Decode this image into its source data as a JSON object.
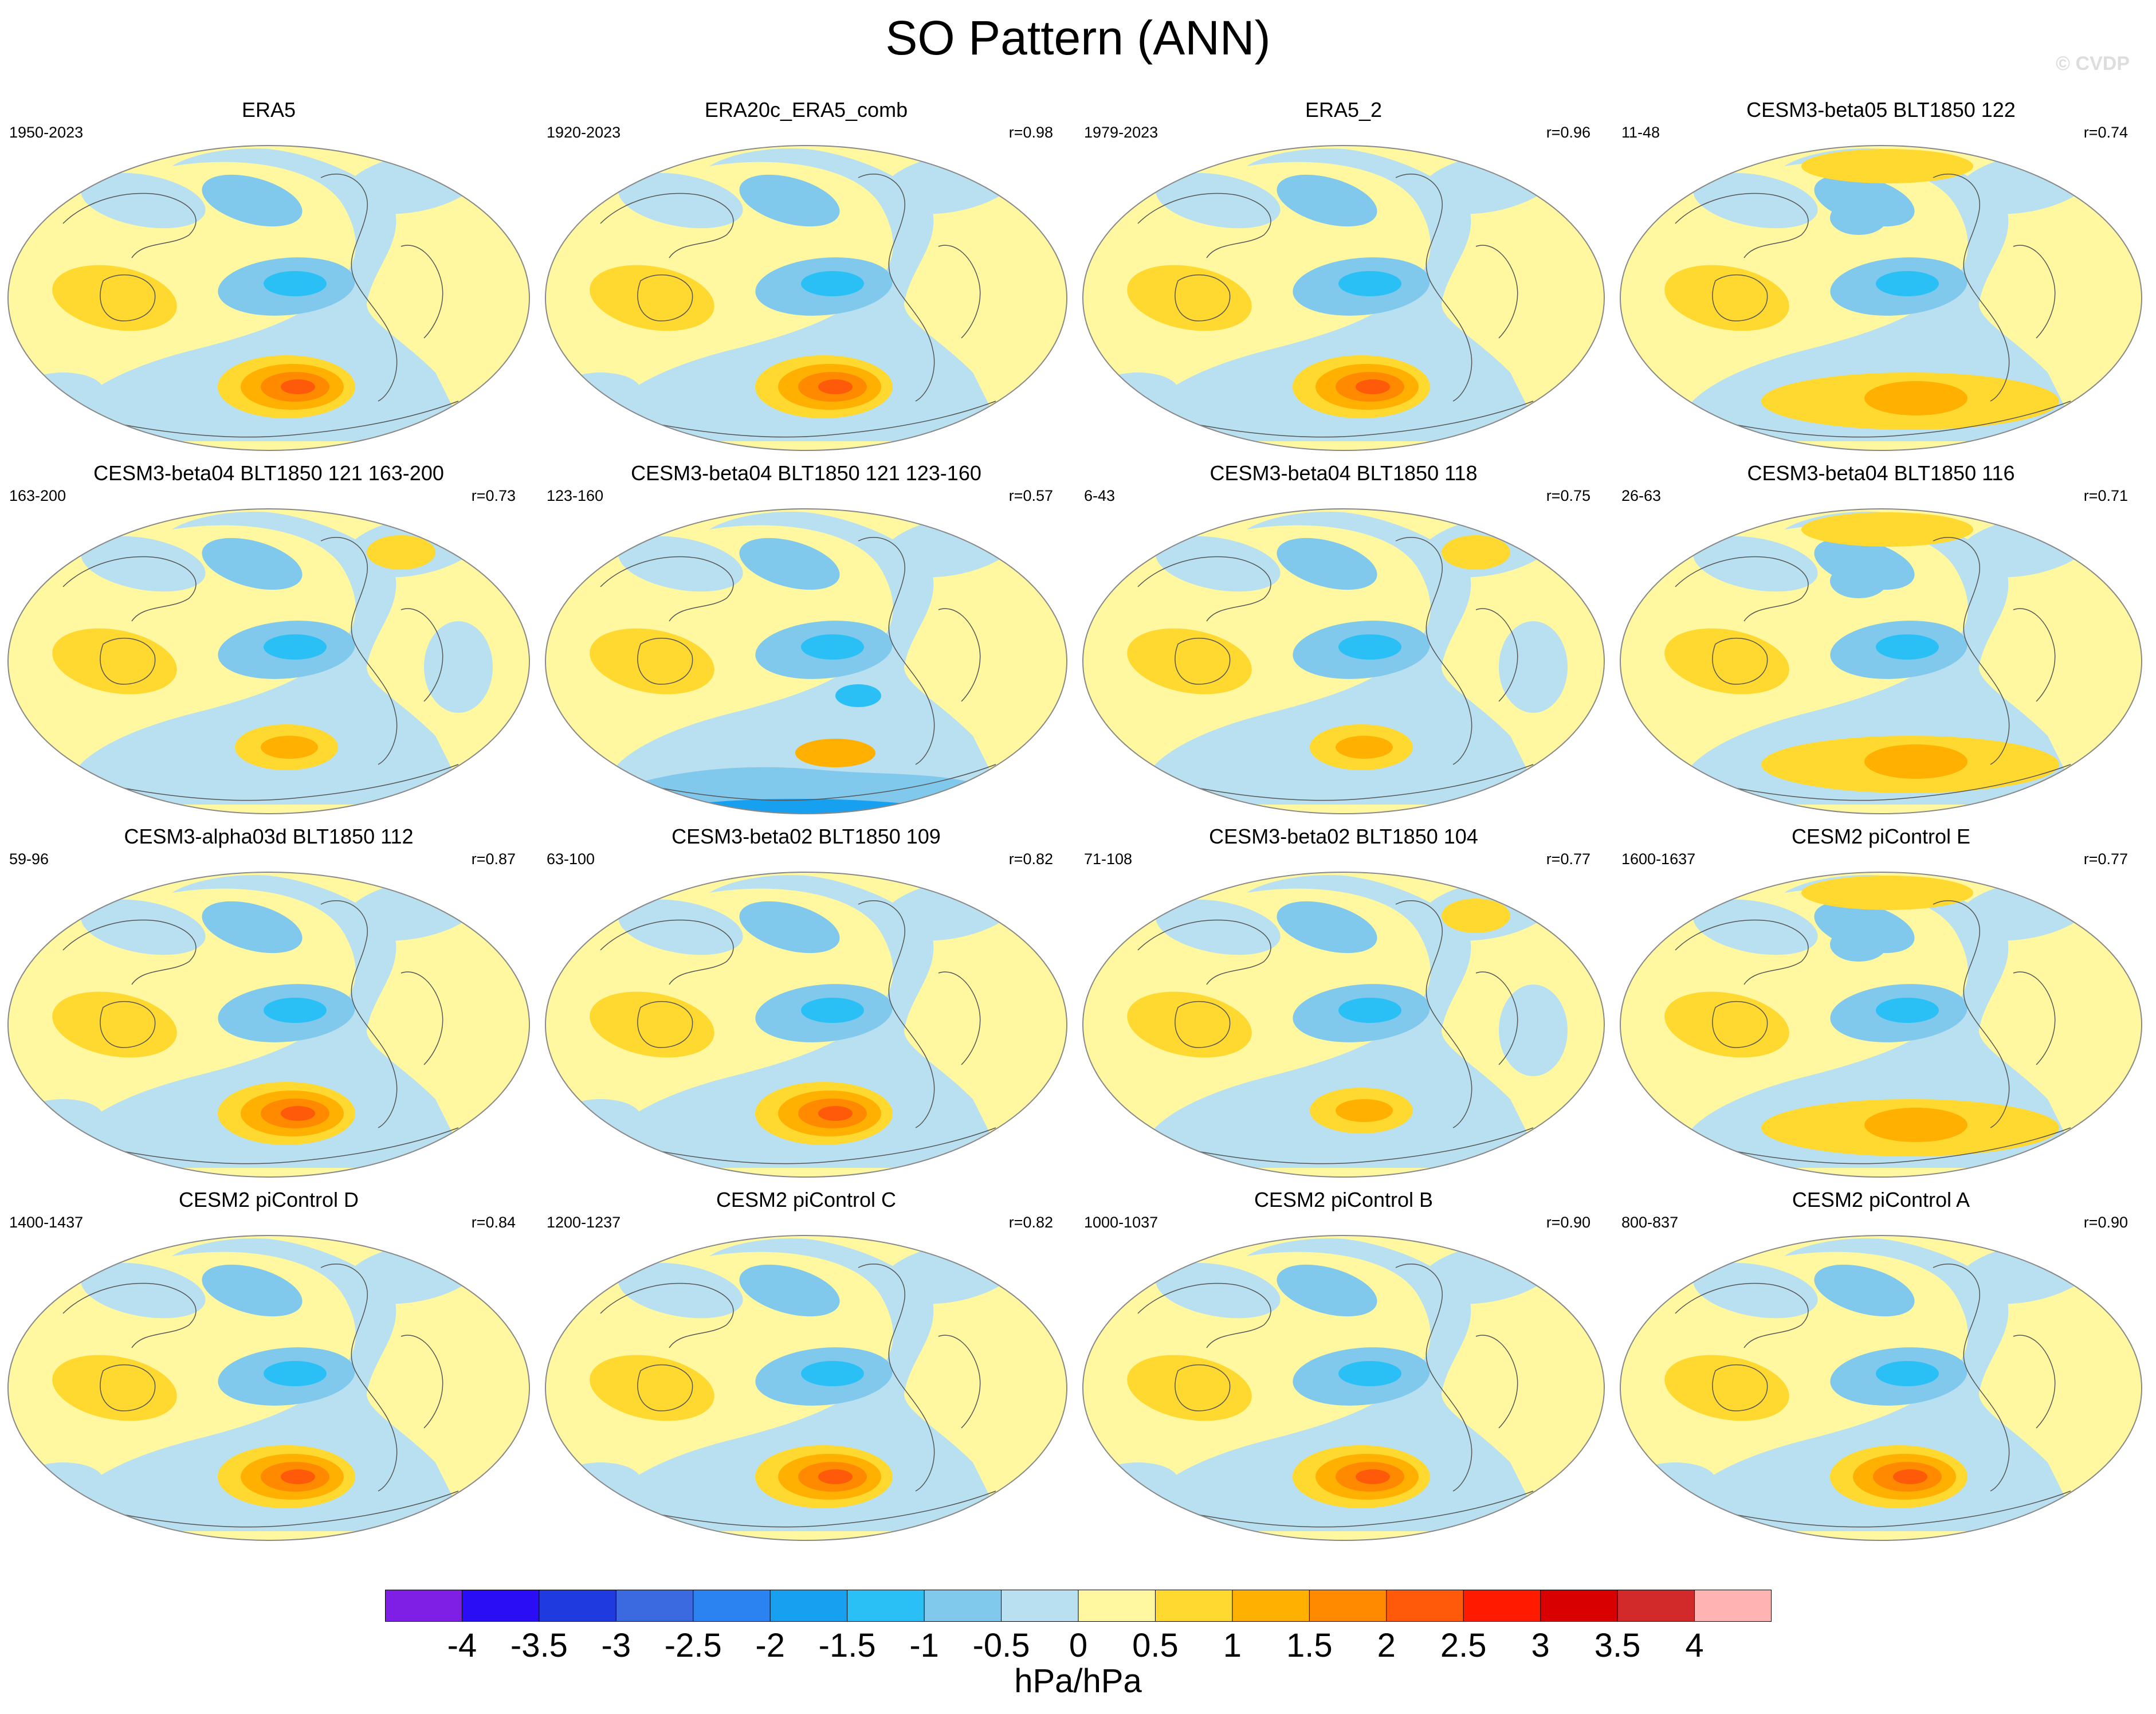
{
  "title": "SO Pattern (ANN)",
  "watermark": "© CVDP",
  "panels": [
    {
      "title": "ERA5",
      "years": "1950-2023",
      "corr": "",
      "variant": 0
    },
    {
      "title": "ERA20c_ERA5_comb",
      "years": "1920-2023",
      "corr": "r=0.98",
      "variant": 0
    },
    {
      "title": "ERA5_2",
      "years": "1979-2023",
      "corr": "r=0.96",
      "variant": 0
    },
    {
      "title": "CESM3-beta05 BLT1850 122",
      "years": "11-48",
      "corr": "r=0.74",
      "variant": 1
    },
    {
      "title": "CESM3-beta04 BLT1850 121 163-200",
      "years": "163-200",
      "corr": "r=0.73",
      "variant": 2
    },
    {
      "title": "CESM3-beta04 BLT1850 121 123-160",
      "years": "123-160",
      "corr": "r=0.57",
      "variant": 3
    },
    {
      "title": "CESM3-beta04 BLT1850 118",
      "years": "6-43",
      "corr": "r=0.75",
      "variant": 2
    },
    {
      "title": "CESM3-beta04 BLT1850 116",
      "years": "26-63",
      "corr": "r=0.71",
      "variant": 1
    },
    {
      "title": "CESM3-alpha03d BLT1850 112",
      "years": "59-96",
      "corr": "r=0.87",
      "variant": 0
    },
    {
      "title": "CESM3-beta02 BLT1850 109",
      "years": "63-100",
      "corr": "r=0.82",
      "variant": 0
    },
    {
      "title": "CESM3-beta02 BLT1850 104",
      "years": "71-108",
      "corr": "r=0.77",
      "variant": 2
    },
    {
      "title": "CESM2 piControl E",
      "years": "1600-1637",
      "corr": "r=0.77",
      "variant": 1
    },
    {
      "title": "CESM2 piControl D",
      "years": "1400-1437",
      "corr": "r=0.84",
      "variant": 0
    },
    {
      "title": "CESM2 piControl C",
      "years": "1200-1237",
      "corr": "r=0.82",
      "variant": 0
    },
    {
      "title": "CESM2 piControl B",
      "years": "1000-1037",
      "corr": "r=0.90",
      "variant": 0
    },
    {
      "title": "CESM2 piControl A",
      "years": "800-837",
      "corr": "r=0.90",
      "variant": 0
    }
  ],
  "colorbar": {
    "colors": [
      "#7f1fe6",
      "#2a0cf5",
      "#1f3bdf",
      "#3b6ae0",
      "#2a83f0",
      "#18a0f0",
      "#2bc0f5",
      "#80c8ec",
      "#b8e0f0",
      "#fff8a0",
      "#ffd830",
      "#ffb000",
      "#ff8a00",
      "#ff5a0a",
      "#ff1a00",
      "#d80000",
      "#d22a2a",
      "#ffb3b3"
    ],
    "labels": [
      "-4",
      "-3.5",
      "-3",
      "-2.5",
      "-2",
      "-1.5",
      "-1",
      "-0.5",
      "0",
      "0.5",
      "1",
      "1.5",
      "2",
      "2.5",
      "3",
      "3.5",
      "4"
    ],
    "units": "hPa/hPa"
  }
}
